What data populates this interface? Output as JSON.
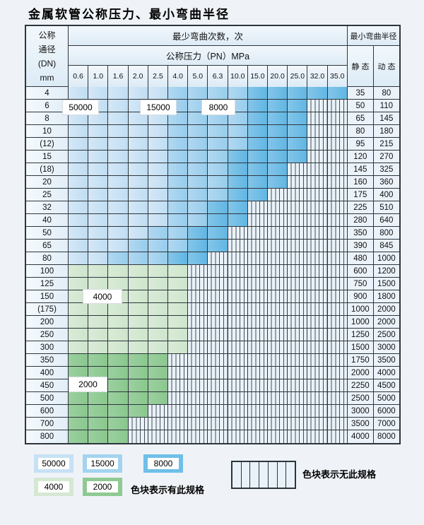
{
  "title": "金属软管公称压力、最小弯曲半径",
  "table": {
    "header": {
      "dn_lines": [
        "公称",
        "通径",
        "(DN)",
        "mm"
      ],
      "cycles_title": "最少弯曲次数，次",
      "pressure_title": "公称压力（PN）MPa",
      "pressures": [
        "0.6",
        "1.0",
        "1.6",
        "2.0",
        "2.5",
        "4.0",
        "5.0",
        "6.3",
        "10.0",
        "15.0",
        "20.0",
        "25.0",
        "32.0",
        "35.0"
      ],
      "radius_title": "最小弯曲半径",
      "static_label": "静 态",
      "dynamic_label": "动 态"
    },
    "rows": [
      {
        "dn": "4",
        "static": "35",
        "dynamic": "80",
        "segments": [
          {
            "value": "50000",
            "cols": 5
          },
          {
            "value": "15000",
            "cols": 4
          },
          {
            "value": "8000",
            "cols": 5
          }
        ]
      },
      {
        "dn": "6",
        "static": "50",
        "dynamic": "110",
        "segments": [
          {
            "value": "50000",
            "cols": 5
          },
          {
            "value": "15000",
            "cols": 4
          },
          {
            "value": "8000",
            "cols": 3
          }
        ]
      },
      {
        "dn": "8",
        "static": "65",
        "dynamic": "145",
        "segments": [
          {
            "value": "50000",
            "cols": 5
          },
          {
            "value": "15000",
            "cols": 4
          },
          {
            "value": "8000",
            "cols": 3
          }
        ]
      },
      {
        "dn": "10",
        "static": "80",
        "dynamic": "180",
        "segments": [
          {
            "value": "50000",
            "cols": 5
          },
          {
            "value": "15000",
            "cols": 4
          },
          {
            "value": "8000",
            "cols": 3
          }
        ]
      },
      {
        "dn": "(12)",
        "static": "95",
        "dynamic": "215",
        "segments": [
          {
            "value": "50000",
            "cols": 5
          },
          {
            "value": "15000",
            "cols": 4
          },
          {
            "value": "8000",
            "cols": 3
          }
        ]
      },
      {
        "dn": "15",
        "static": "120",
        "dynamic": "270",
        "segments": [
          {
            "value": "50000",
            "cols": 5
          },
          {
            "value": "15000",
            "cols": 3
          },
          {
            "value": "8000",
            "cols": 4
          }
        ]
      },
      {
        "dn": "(18)",
        "static": "145",
        "dynamic": "325",
        "segments": [
          {
            "value": "50000",
            "cols": 5
          },
          {
            "value": "15000",
            "cols": 3
          },
          {
            "value": "8000",
            "cols": 3
          }
        ]
      },
      {
        "dn": "20",
        "static": "160",
        "dynamic": "360",
        "segments": [
          {
            "value": "50000",
            "cols": 5
          },
          {
            "value": "15000",
            "cols": 3
          },
          {
            "value": "8000",
            "cols": 3
          }
        ]
      },
      {
        "dn": "25",
        "static": "175",
        "dynamic": "400",
        "segments": [
          {
            "value": "50000",
            "cols": 5
          },
          {
            "value": "15000",
            "cols": 3
          },
          {
            "value": "8000",
            "cols": 2
          }
        ]
      },
      {
        "dn": "32",
        "static": "225",
        "dynamic": "510",
        "segments": [
          {
            "value": "50000",
            "cols": 5
          },
          {
            "value": "15000",
            "cols": 2
          },
          {
            "value": "8000",
            "cols": 2
          }
        ]
      },
      {
        "dn": "40",
        "static": "280",
        "dynamic": "640",
        "segments": [
          {
            "value": "50000",
            "cols": 5
          },
          {
            "value": "15000",
            "cols": 2
          },
          {
            "value": "8000",
            "cols": 2
          }
        ]
      },
      {
        "dn": "50",
        "static": "350",
        "dynamic": "800",
        "segments": [
          {
            "value": "50000",
            "cols": 4
          },
          {
            "value": "15000",
            "cols": 2
          },
          {
            "value": "8000",
            "cols": 2
          }
        ]
      },
      {
        "dn": "65",
        "static": "390",
        "dynamic": "845",
        "segments": [
          {
            "value": "50000",
            "cols": 3
          },
          {
            "value": "15000",
            "cols": 3
          },
          {
            "value": "8000",
            "cols": 2
          }
        ]
      },
      {
        "dn": "80",
        "static": "480",
        "dynamic": "1000",
        "segments": [
          {
            "value": "50000",
            "cols": 2
          },
          {
            "value": "15000",
            "cols": 3
          },
          {
            "value": "8000",
            "cols": 2
          }
        ]
      },
      {
        "dn": "100",
        "static": "600",
        "dynamic": "1200",
        "segments": [
          {
            "value": "4000",
            "cols": 6
          }
        ]
      },
      {
        "dn": "125",
        "static": "750",
        "dynamic": "1500",
        "segments": [
          {
            "value": "4000",
            "cols": 6
          }
        ]
      },
      {
        "dn": "150",
        "static": "900",
        "dynamic": "1800",
        "segments": [
          {
            "value": "4000",
            "cols": 6
          }
        ]
      },
      {
        "dn": "(175)",
        "static": "1000",
        "dynamic": "2000",
        "segments": [
          {
            "value": "4000",
            "cols": 6
          }
        ]
      },
      {
        "dn": "200",
        "static": "1000",
        "dynamic": "2000",
        "segments": [
          {
            "value": "4000",
            "cols": 6
          }
        ]
      },
      {
        "dn": "250",
        "static": "1250",
        "dynamic": "2500",
        "segments": [
          {
            "value": "4000",
            "cols": 6
          }
        ]
      },
      {
        "dn": "300",
        "static": "1500",
        "dynamic": "3000",
        "segments": [
          {
            "value": "4000",
            "cols": 6
          }
        ]
      },
      {
        "dn": "350",
        "static": "1750",
        "dynamic": "3500",
        "segments": [
          {
            "value": "2000",
            "cols": 5
          }
        ]
      },
      {
        "dn": "400",
        "static": "2000",
        "dynamic": "4000",
        "segments": [
          {
            "value": "2000",
            "cols": 5
          }
        ]
      },
      {
        "dn": "450",
        "static": "2250",
        "dynamic": "4500",
        "segments": [
          {
            "value": "2000",
            "cols": 5
          }
        ]
      },
      {
        "dn": "500",
        "static": "2500",
        "dynamic": "5000",
        "segments": [
          {
            "value": "2000",
            "cols": 5
          }
        ]
      },
      {
        "dn": "600",
        "static": "3000",
        "dynamic": "6000",
        "segments": [
          {
            "value": "2000",
            "cols": 4
          }
        ]
      },
      {
        "dn": "700",
        "static": "3500",
        "dynamic": "7000",
        "segments": [
          {
            "value": "2000",
            "cols": 3
          }
        ]
      },
      {
        "dn": "800",
        "static": "4000",
        "dynamic": "8000",
        "segments": [
          {
            "value": "2000",
            "cols": 3
          }
        ]
      }
    ]
  },
  "region_labels": {
    "r50000": "50000",
    "r15000": "15000",
    "r8000": "8000",
    "r4000": "4000",
    "r2000": "2000"
  },
  "legend": {
    "items": [
      {
        "value": "50000",
        "color": "#c7e1f4"
      },
      {
        "value": "15000",
        "color": "#a3d3ee"
      },
      {
        "value": "8000",
        "color": "#6fbfe8"
      },
      {
        "value": "4000",
        "color": "#d5e8d2"
      },
      {
        "value": "2000",
        "color": "#8fc993"
      }
    ],
    "note_available": "色块表示有此规格",
    "note_unavailable": "色块表示无此规格"
  },
  "colors": {
    "blue_50000": "#c7e1f4",
    "blue_15000": "#a3d3ee",
    "blue_8000": "#6fbfe8",
    "green_4000": "#d5e8d2",
    "green_2000": "#8fc993",
    "no_spec_bg": "#eaf2f9",
    "grid_border": "#2e363d"
  }
}
